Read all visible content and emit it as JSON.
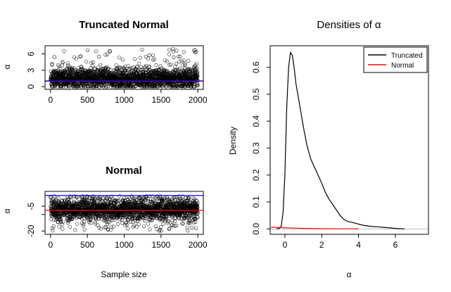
{
  "chart_data": [
    {
      "type": "scatter",
      "title": "Truncated Normal",
      "xlabel": "",
      "ylabel": "α",
      "xlim": [
        -75,
        2075
      ],
      "ylim": [
        -0.5,
        7.5
      ],
      "x_ticks": [
        0,
        500,
        1000,
        1500,
        2000
      ],
      "x_tick_labels": [
        "0",
        "500",
        "1000",
        "1500",
        "2000"
      ],
      "y_ticks": [
        0,
        3,
        6
      ],
      "y_tick_labels": [
        "0",
        "3",
        "6"
      ],
      "n_points": 2000,
      "point_summary": {
        "min": 0.0,
        "typical_low": 0.0,
        "typical_high": 3.0,
        "max": 7.0
      },
      "hlines": [
        {
          "y": 1.0,
          "color": "#ff0000"
        },
        {
          "y": 1.05,
          "color": "#0000ff"
        }
      ],
      "grid": false
    },
    {
      "type": "scatter",
      "title": "Normal",
      "xlabel": "Sample size",
      "ylabel": "α",
      "xlim": [
        -75,
        2075
      ],
      "ylim": [
        -22,
        4
      ],
      "x_ticks": [
        0,
        500,
        1000,
        1500,
        2000
      ],
      "x_tick_labels": [
        "0",
        "500",
        "1000",
        "1500",
        "2000"
      ],
      "y_ticks": [
        -20,
        -10,
        -5
      ],
      "y_tick_labels": [
        "-20",
        "",
        "-5"
      ],
      "n_points": 2000,
      "point_summary": {
        "min": -20,
        "typical_low": -12,
        "typical_high": -2,
        "max": 1
      },
      "hlines": [
        {
          "y": -7.5,
          "color": "#ff0000"
        },
        {
          "y": 1.5,
          "color": "#0000ff"
        }
      ],
      "grid": false
    },
    {
      "type": "line",
      "title": "Densities of α",
      "xlabel": "α",
      "ylabel": "Density",
      "xlim": [
        -0.8,
        7.8
      ],
      "ylim": [
        -0.02,
        0.68
      ],
      "x_ticks": [
        0,
        2,
        4,
        6
      ],
      "x_tick_labels": [
        "0",
        "2",
        "4",
        "6"
      ],
      "y_ticks": [
        0.0,
        0.1,
        0.2,
        0.3,
        0.4,
        0.5,
        0.6
      ],
      "y_tick_labels": [
        "0.0",
        "0.1",
        "0.2",
        "0.3",
        "0.4",
        "0.5",
        "0.6"
      ],
      "zero_line": {
        "y": 0,
        "color": "#bebebe"
      },
      "series": [
        {
          "name": "Truncated",
          "color": "#000000",
          "x": [
            -0.45,
            -0.3,
            -0.2,
            -0.1,
            0.0,
            0.1,
            0.2,
            0.3,
            0.4,
            0.5,
            0.6,
            0.8,
            1.0,
            1.2,
            1.4,
            1.6,
            1.8,
            2.0,
            2.2,
            2.4,
            2.6,
            2.8,
            3.0,
            3.2,
            3.4,
            3.6,
            3.8,
            4.0,
            4.3,
            4.6,
            5.0,
            5.5,
            6.0,
            6.5
          ],
          "y": [
            0.0,
            0.002,
            0.01,
            0.06,
            0.2,
            0.45,
            0.6,
            0.655,
            0.645,
            0.6,
            0.54,
            0.46,
            0.38,
            0.31,
            0.26,
            0.23,
            0.2,
            0.17,
            0.135,
            0.11,
            0.09,
            0.07,
            0.05,
            0.035,
            0.028,
            0.025,
            0.022,
            0.018,
            0.013,
            0.01,
            0.008,
            0.005,
            0.002,
            0.0
          ]
        },
        {
          "name": "Normal",
          "color": "#ff0000",
          "x": [
            -0.75,
            -0.5,
            -0.2,
            0.0,
            0.5,
            1.0,
            2.0,
            3.0,
            4.0
          ],
          "y": [
            0.006,
            0.006,
            0.005,
            0.004,
            0.003,
            0.002,
            0.001,
            0.0005,
            0.0003
          ]
        }
      ],
      "legend_position": "top-right",
      "grid": false
    }
  ]
}
